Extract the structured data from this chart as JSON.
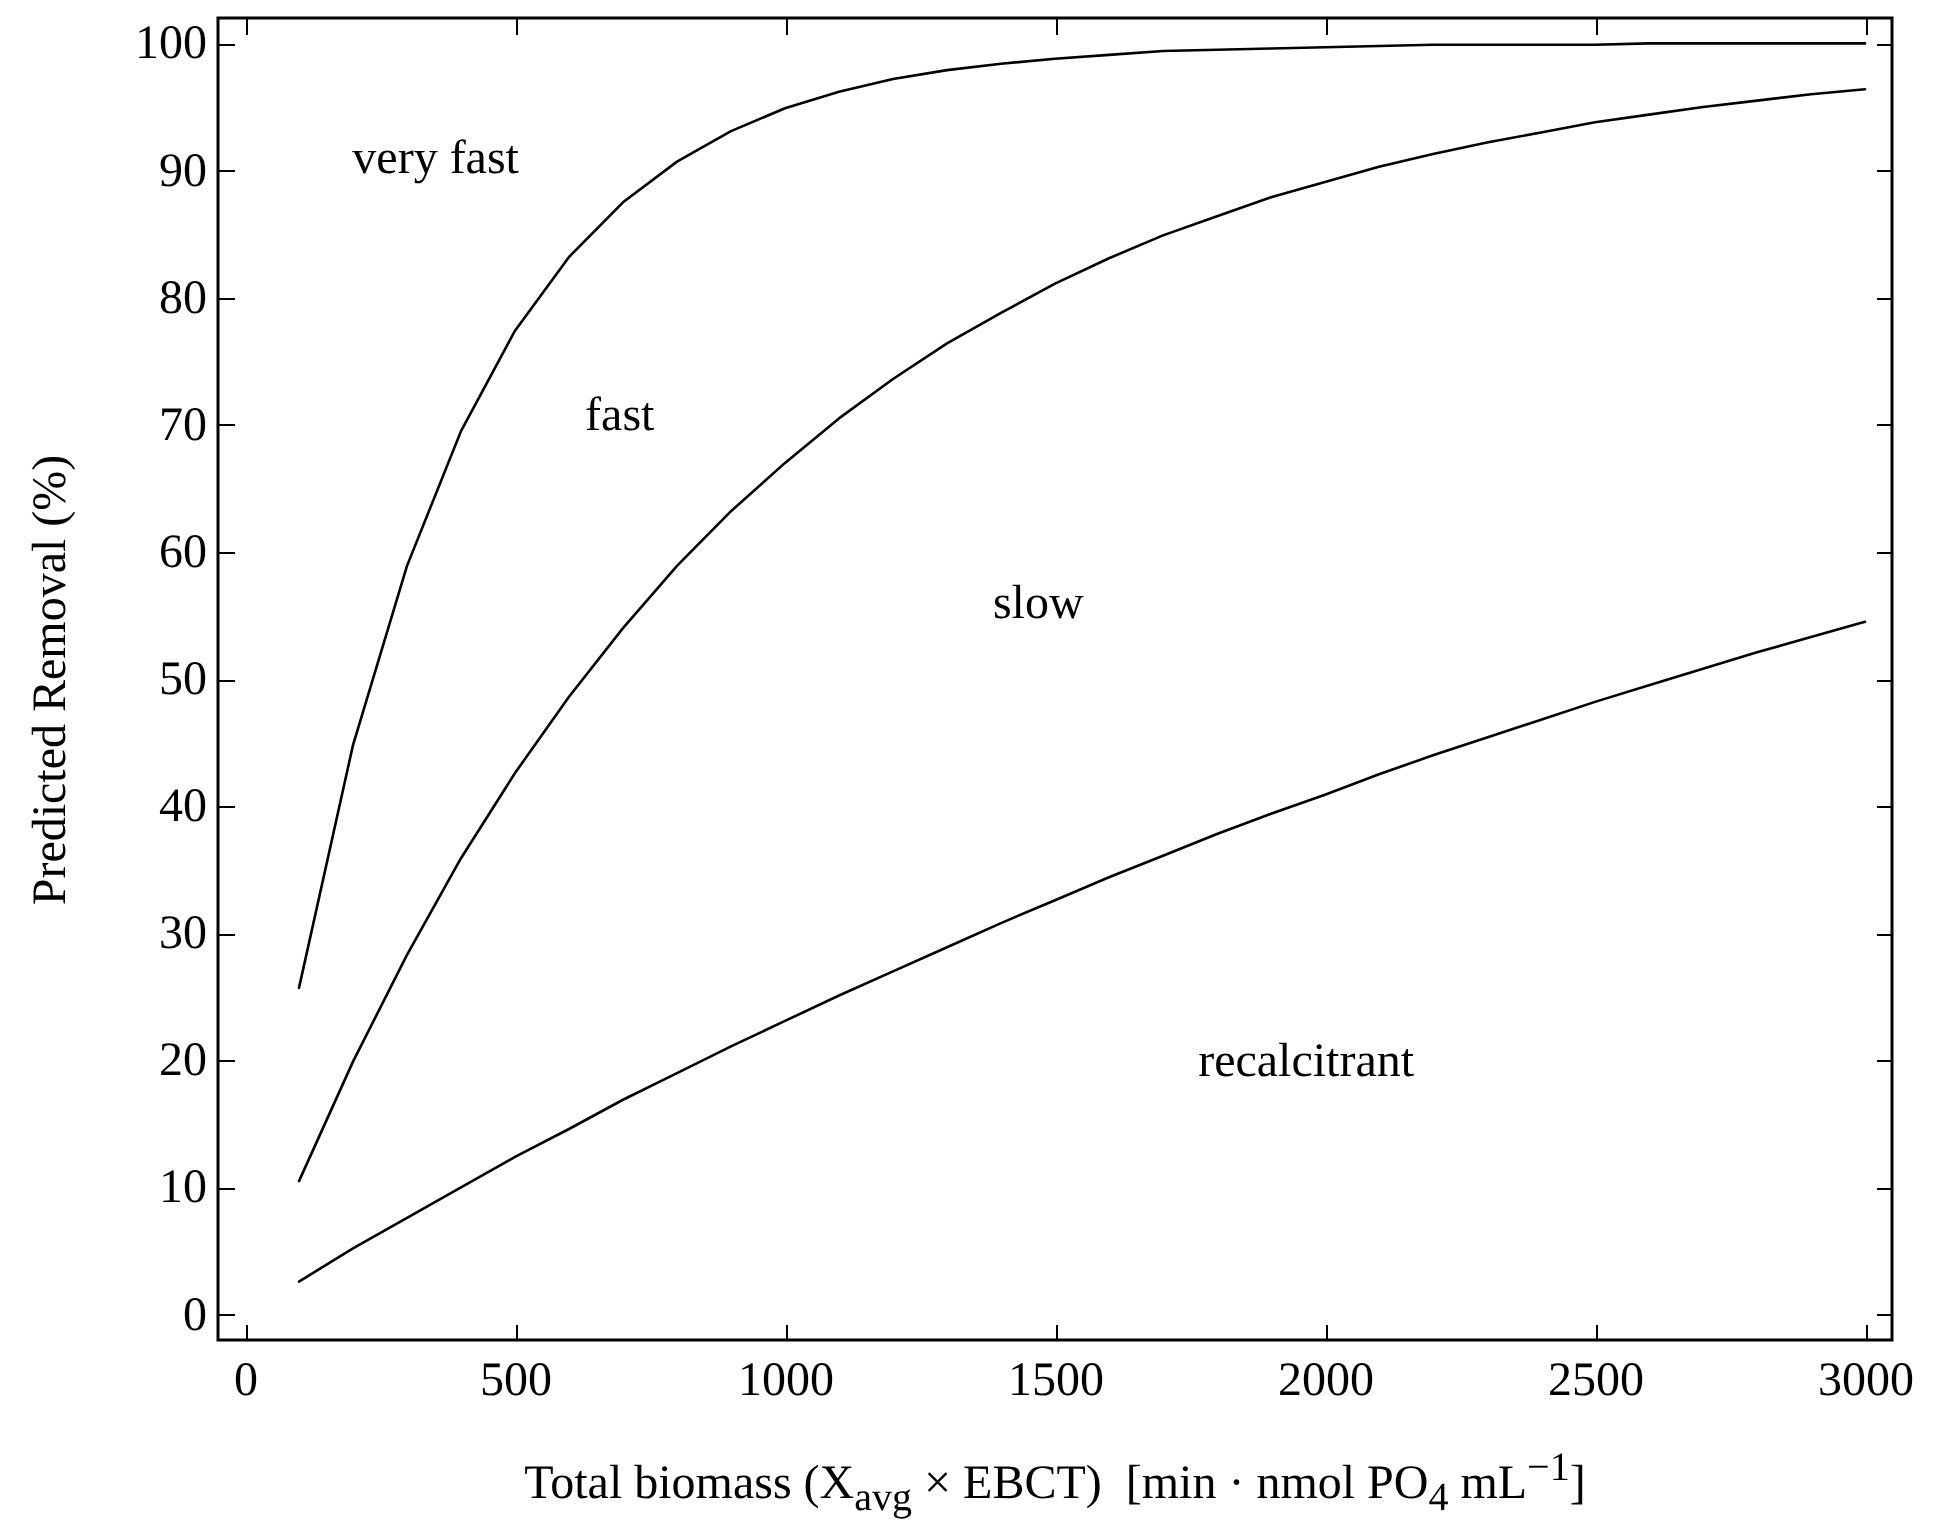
{
  "chart_data": {
    "type": "line",
    "xlabel": "Total biomass (X$_{avg}$ × EBCT)  [min · nmol PO$_{4}$ mL$^{−1}$]",
    "ylabel": "Predicted Removal (%)",
    "annotations": [
      "very fast",
      "fast",
      "slow",
      "recalcitrant"
    ],
    "x": [
      100,
      200,
      300,
      400,
      500,
      600,
      700,
      800,
      900,
      1000,
      1100,
      1200,
      1300,
      1400,
      1500,
      1600,
      1700,
      1800,
      1900,
      2000,
      2100,
      2200,
      2300,
      2400,
      2500,
      2600,
      2700,
      2800,
      2900,
      3000
    ],
    "series": [
      {
        "color": "#000000",
        "values": [
          25.7,
          44.8,
          58.9,
          69.5,
          77.4,
          83.2,
          87.5,
          90.7,
          93.1,
          94.9,
          96.2,
          97.2,
          97.9,
          98.4,
          98.8,
          99.1,
          99.4,
          99.5,
          99.6,
          99.7,
          99.8,
          99.9,
          99.9,
          99.9,
          99.9,
          100,
          100,
          100,
          100,
          100
        ]
      },
      {
        "color": "#000000",
        "values": [
          10.5,
          19.9,
          28.3,
          35.9,
          42.6,
          48.6,
          54.0,
          58.9,
          63.2,
          67.0,
          70.5,
          73.6,
          76.4,
          78.8,
          81.1,
          83.1,
          84.9,
          86.4,
          87.9,
          89.1,
          90.3,
          91.3,
          92.2,
          93.0,
          93.8,
          94.4,
          95.0,
          95.5,
          96.0,
          96.4
        ]
      },
      {
        "color": "#000000",
        "values": [
          2.6,
          5.2,
          7.6,
          10.0,
          12.4,
          14.6,
          16.9,
          19.0,
          21.1,
          23.1,
          25.1,
          27.0,
          28.9,
          30.8,
          32.6,
          34.4,
          36.1,
          37.8,
          39.4,
          40.9,
          42.5,
          44.0,
          45.4,
          46.8,
          48.2,
          49.5,
          50.8,
          52.1,
          53.3,
          54.5
        ]
      }
    ],
    "xlim": [
      -50,
      3050
    ],
    "ylim": [
      -2,
      102
    ],
    "xticks": [
      0,
      500,
      1000,
      1500,
      2000,
      2500,
      3000
    ],
    "yticks": [
      0,
      10,
      20,
      30,
      40,
      50,
      60,
      70,
      80,
      90,
      100
    ]
  }
}
